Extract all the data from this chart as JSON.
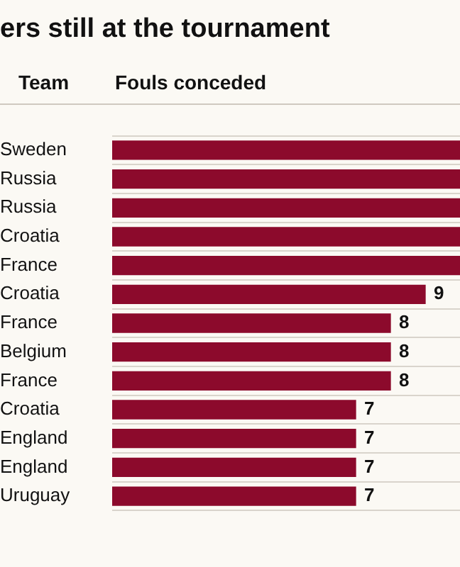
{
  "chart_data": {
    "type": "bar",
    "orientation": "horizontal",
    "title": "ers still at the tournament",
    "ylabel": "Team",
    "xlabel": "Fouls conceded",
    "categories": [
      "Sweden",
      "Russia",
      "Russia",
      "Croatia",
      "France",
      "Croatia",
      "France",
      "Belgium",
      "France",
      "Croatia",
      "England",
      "England",
      "Uruguay"
    ],
    "values": [
      10,
      10,
      10,
      10,
      10,
      9,
      8,
      8,
      8,
      7,
      7,
      7,
      7
    ],
    "value_labels": [
      null,
      null,
      null,
      null,
      null,
      "9",
      "8",
      "8",
      "8",
      "7",
      "7",
      "7",
      "7"
    ],
    "color": "#8c0a2c",
    "xlim": [
      0,
      10
    ],
    "grid": "y",
    "tick_labels": "y",
    "legend": false
  }
}
